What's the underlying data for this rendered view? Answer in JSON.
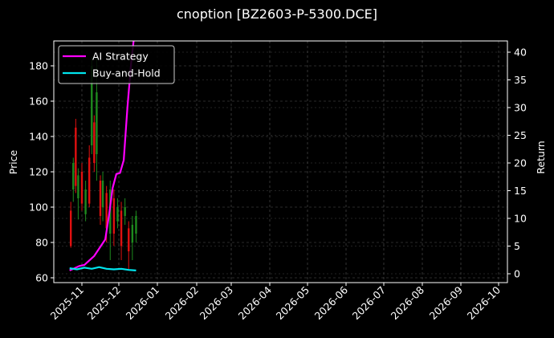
{
  "chart_data": {
    "type": "line",
    "title": "cnoption [BZ2603-P-5300.DCE]",
    "xlabel": "",
    "ylabel": "Price",
    "y2label": "Return",
    "ylim": [
      58,
      194
    ],
    "y2lim": [
      -1,
      42
    ],
    "grid": true,
    "legend_position": "upper left",
    "x_ticks": [
      "2025-11",
      "2025-12",
      "2026-01",
      "2026-02",
      "2026-03",
      "2026-04",
      "2026-05",
      "2026-06",
      "2026-07",
      "2026-08",
      "2026-09",
      "2026-10"
    ],
    "y_ticks": [
      60,
      80,
      100,
      120,
      140,
      160,
      180
    ],
    "y2_ticks": [
      0,
      5,
      10,
      15,
      20,
      25,
      30,
      35,
      40
    ],
    "legend": [
      "AI Strategy",
      "Buy-and-Hold"
    ],
    "series": [
      {
        "name": "AI Strategy",
        "axis": "right",
        "color": "#ff00ff",
        "x": [
          "2025-10-22",
          "2025-10-26",
          "2025-10-30",
          "2025-11-03",
          "2025-11-07",
          "2025-11-11",
          "2025-11-14",
          "2025-11-17",
          "2025-11-20",
          "2025-11-23",
          "2025-11-26",
          "2025-11-29",
          "2025-12-02",
          "2025-12-05",
          "2025-12-08",
          "2025-12-11",
          "2025-12-13"
        ],
        "values": [
          0.6,
          1.0,
          1.4,
          1.6,
          2.4,
          3.2,
          4.2,
          5.2,
          6.2,
          10.5,
          15.5,
          18.0,
          18.2,
          20.5,
          30.0,
          38.0,
          42.0
        ]
      },
      {
        "name": "Buy-and-Hold",
        "axis": "right",
        "color": "#00e5ee",
        "x": [
          "2025-10-22",
          "2025-10-28",
          "2025-11-03",
          "2025-11-09",
          "2025-11-15",
          "2025-11-21",
          "2025-11-27",
          "2025-12-03",
          "2025-12-09",
          "2025-12-15"
        ],
        "values": [
          1.0,
          0.8,
          1.1,
          0.9,
          1.2,
          0.9,
          0.8,
          0.9,
          0.7,
          0.6
        ]
      }
    ],
    "candles_note": "Red/green OHLC candlesticks on left Price axis from ~2025-10-22 to ~2025-12-16, prices ranging approx 65–185",
    "candles": [
      {
        "x": "2025-10-23",
        "open": 98,
        "close": 78,
        "high": 103,
        "low": 77,
        "color": "red"
      },
      {
        "x": "2025-10-25",
        "open": 110,
        "close": 125,
        "high": 128,
        "low": 103,
        "color": "green"
      },
      {
        "x": "2025-10-27",
        "open": 145,
        "close": 112,
        "high": 150,
        "low": 108,
        "color": "red"
      },
      {
        "x": "2025-10-29",
        "open": 105,
        "close": 118,
        "high": 122,
        "low": 93,
        "color": "green"
      },
      {
        "x": "2025-11-01",
        "open": 120,
        "close": 102,
        "high": 125,
        "low": 98,
        "color": "red"
      },
      {
        "x": "2025-11-04",
        "open": 96,
        "close": 110,
        "high": 115,
        "low": 92,
        "color": "green"
      },
      {
        "x": "2025-11-07",
        "open": 128,
        "close": 102,
        "high": 135,
        "low": 100,
        "color": "red"
      },
      {
        "x": "2025-11-09",
        "open": 135,
        "close": 180,
        "high": 185,
        "low": 130,
        "color": "green"
      },
      {
        "x": "2025-11-11",
        "open": 148,
        "close": 125,
        "high": 152,
        "low": 120,
        "color": "red"
      },
      {
        "x": "2025-11-13",
        "open": 130,
        "close": 165,
        "high": 185,
        "low": 115,
        "color": "green"
      },
      {
        "x": "2025-11-16",
        "open": 115,
        "close": 95,
        "high": 118,
        "low": 90,
        "color": "red"
      },
      {
        "x": "2025-11-18",
        "open": 100,
        "close": 115,
        "high": 120,
        "low": 92,
        "color": "green"
      },
      {
        "x": "2025-11-21",
        "open": 108,
        "close": 88,
        "high": 112,
        "low": 80,
        "color": "red"
      },
      {
        "x": "2025-11-24",
        "open": 85,
        "close": 110,
        "high": 115,
        "low": 70,
        "color": "green"
      },
      {
        "x": "2025-11-27",
        "open": 105,
        "close": 85,
        "high": 110,
        "low": 78,
        "color": "red"
      },
      {
        "x": "2025-11-30",
        "open": 92,
        "close": 100,
        "high": 105,
        "low": 88,
        "color": "green"
      },
      {
        "x": "2025-12-03",
        "open": 98,
        "close": 78,
        "high": 103,
        "low": 70,
        "color": "red"
      },
      {
        "x": "2025-12-06",
        "open": 95,
        "close": 100,
        "high": 105,
        "low": 90,
        "color": "green"
      },
      {
        "x": "2025-12-09",
        "open": 88,
        "close": 75,
        "high": 92,
        "low": 65,
        "color": "red"
      },
      {
        "x": "2025-12-12",
        "open": 80,
        "close": 90,
        "high": 95,
        "low": 70,
        "color": "green"
      },
      {
        "x": "2025-12-15",
        "open": 85,
        "close": 95,
        "high": 98,
        "low": 80,
        "color": "green"
      }
    ]
  }
}
